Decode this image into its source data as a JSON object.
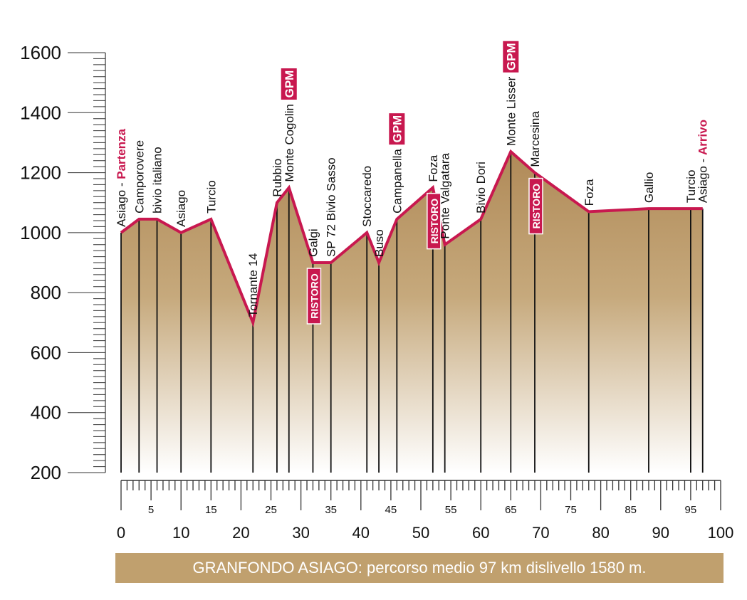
{
  "chart_data": {
    "type": "area",
    "title": "",
    "caption": "GRANFONDO ASIAGO: percorso medio 97 km dislivello 1580 m.",
    "xlim": [
      0,
      100
    ],
    "ylim": [
      200,
      1600
    ],
    "x_ticks_major": [
      "0",
      "10",
      "20",
      "30",
      "40",
      "50",
      "60",
      "70",
      "80",
      "90",
      "100"
    ],
    "x_ticks_minor": [
      "5",
      "15",
      "25",
      "35",
      "45",
      "55",
      "65",
      "75",
      "85",
      "95"
    ],
    "y_ticks": [
      "200",
      "400",
      "600",
      "800",
      "1000",
      "1200",
      "1400",
      "1600"
    ],
    "grid": false,
    "colors": {
      "line": "#c8184f",
      "fill_top": "#b99463",
      "fill_bottom": "#ffffff",
      "tag": "#c8184f"
    },
    "x": [
      0,
      3,
      6,
      10,
      15,
      22,
      26,
      28,
      32,
      35,
      41,
      43,
      46,
      52,
      54,
      60,
      65,
      69,
      78,
      88,
      95,
      97
    ],
    "y": [
      1000,
      1045,
      1045,
      1000,
      1045,
      700,
      1100,
      1150,
      900,
      900,
      1000,
      900,
      1045,
      1150,
      960,
      1045,
      1270,
      1200,
      1070,
      1080,
      1080,
      1080
    ],
    "waypoints": [
      {
        "km": 0,
        "label": "Asiago - ",
        "accent": "Partenza"
      },
      {
        "km": 3,
        "label": "Camporovere"
      },
      {
        "km": 6,
        "label": "bivio italiano"
      },
      {
        "km": 10,
        "label": "Asiago"
      },
      {
        "km": 15,
        "label": "Turcio"
      },
      {
        "km": 22,
        "label": "Tornante 14"
      },
      {
        "km": 26,
        "label": "Rubbio"
      },
      {
        "km": 28,
        "label": "Monte Cogolin",
        "tag": "GPM"
      },
      {
        "km": 32,
        "label": "Galgi",
        "tag": "RISTORO"
      },
      {
        "km": 35,
        "label": "SP 72 Bivio Sasso"
      },
      {
        "km": 41,
        "label": "Stoccaredo"
      },
      {
        "km": 43,
        "label": "Buso"
      },
      {
        "km": 46,
        "label": "Campanella",
        "tag": "GPM"
      },
      {
        "km": 52,
        "label": "Foza",
        "tag": "RISTORO"
      },
      {
        "km": 54,
        "label": "Ponte Valgatara"
      },
      {
        "km": 60,
        "label": "Bivio Dori"
      },
      {
        "km": 65,
        "label": "Monte Lisser",
        "tag": "GPM"
      },
      {
        "km": 69,
        "label": "Marcesina",
        "tag": "RISTORO"
      },
      {
        "km": 78,
        "label": "Foza"
      },
      {
        "km": 88,
        "label": "Gallio"
      },
      {
        "km": 95,
        "label": "Turcio"
      },
      {
        "km": 97,
        "label": "Asiago - ",
        "accent": "Arrivo"
      }
    ]
  }
}
